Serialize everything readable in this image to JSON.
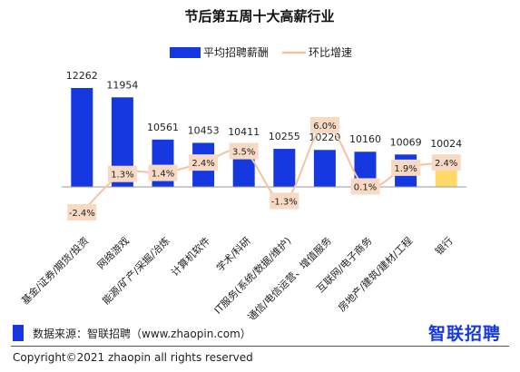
{
  "chart_data": {
    "type": "bar",
    "title": "节后第五周十大高薪行业",
    "categories": [
      "基金/证券/期货/投资",
      "网络游戏",
      "能源/矿产/采掘/冶炼",
      "计算机软件",
      "学术/科研",
      "IT服务(系统/数据/维护)",
      "通信/电信运营、增值服务",
      "互联网/电子商务",
      "房地产/建筑/建材/工程",
      "银行"
    ],
    "series": [
      {
        "name": "平均招聘薪酬",
        "type": "bar",
        "color": "#1638e0",
        "values": [
          12262,
          11954,
          10561,
          10453,
          10411,
          10255,
          10220,
          10160,
          10069,
          10024
        ],
        "labels": [
          "12262",
          "11954",
          "10561",
          "10453",
          "10411",
          "10255",
          "10220",
          "10160",
          "10069",
          "10024"
        ]
      },
      {
        "name": "环比增速",
        "type": "line",
        "color": "#f3c3a2",
        "values": [
          -2.4,
          1.3,
          1.4,
          2.4,
          3.5,
          -1.3,
          6.0,
          0.1,
          1.9,
          2.4
        ],
        "labels": [
          "-2.4%",
          "1.3%",
          "1.4%",
          "2.4%",
          "3.5%",
          "-1.3%",
          "6.0%",
          "0.1%",
          "1.9%",
          "2.4%"
        ]
      }
    ],
    "highlight_index": 9,
    "highlight_color": "#ffd966",
    "legend_position": "top-center",
    "grid": false
  },
  "footer": {
    "source": "数据来源：智联招聘（www.zhaopin.com）",
    "brand": "智联招聘",
    "copyright": "Copyright©2021 zhaopin all rights reserved"
  }
}
